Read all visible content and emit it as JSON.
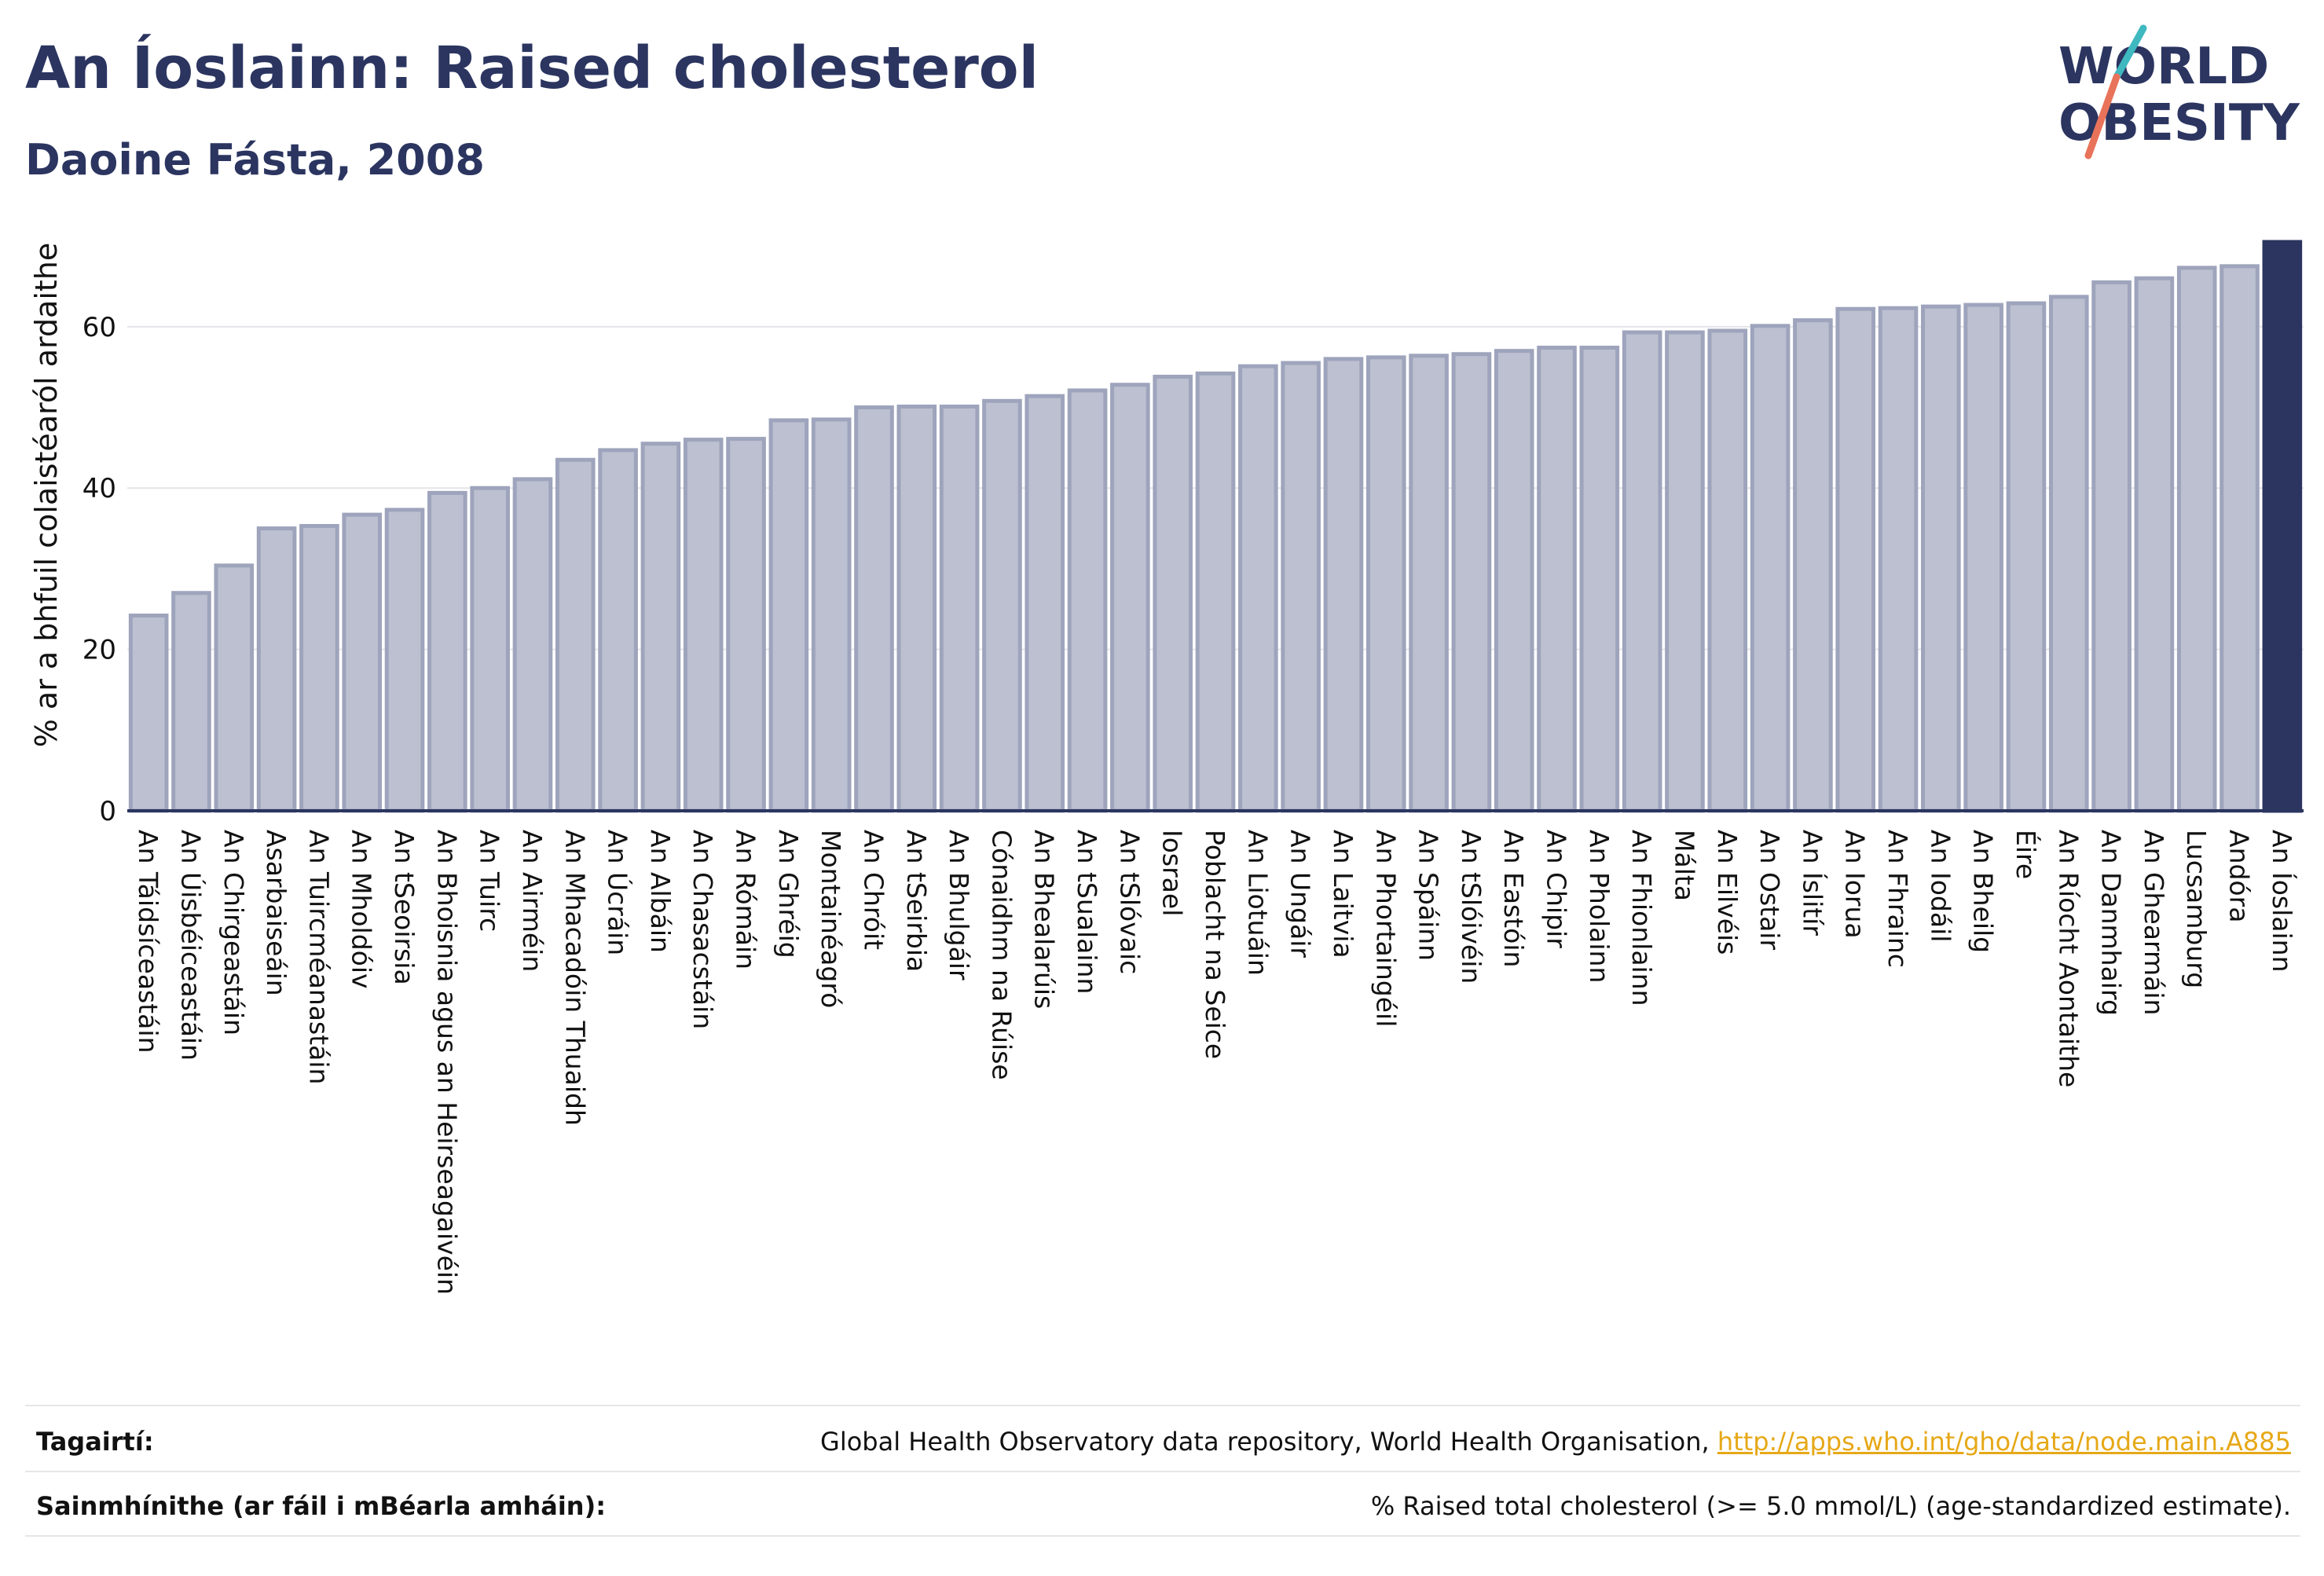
{
  "header": {
    "title": "An Íoslainn: Raised cholesterol",
    "subtitle": "Daoine Fásta, 2008"
  },
  "logo": {
    "line1": "WORLD",
    "line2": "OBESITY",
    "colors": {
      "text": "#2b3560",
      "slash_top": "#3fb8c0",
      "slash_bottom": "#e8735a"
    }
  },
  "colors": {
    "bar": "#bcc0d0",
    "bar_stroke": "#9ea4bc",
    "highlight": "#2b3560",
    "grid": "#e5e5ea",
    "axis": "#2b3560"
  },
  "chart_data": {
    "type": "bar",
    "ylabel": "% ar a bhfuil colaistéaról ardaithe",
    "ylim": [
      0,
      70.5
    ],
    "yticks": [
      0,
      20,
      40,
      60
    ],
    "grid": true,
    "highlight": "An Íoslainn",
    "categories": [
      "An Táidsíceastáin",
      "An Úisbéiceastáin",
      "An Chirgeastáin",
      "Asarbaiseáin",
      "An Tuircméanastáin",
      "An Mholdóiv",
      "An tSeoirsia",
      "An Bhoisnia agus an Heirseagaivéin",
      "An Tuirc",
      "An Airméin",
      "An Mhacadóin Thuaidh",
      "An Úcráin",
      "An Albáin",
      "An Chasacstáin",
      "An Rómáin",
      "An Ghréig",
      "Montainéagró",
      "An Chróit",
      "An tSeirbia",
      "An Bhulgáir",
      "Cónaidhm na Rúise",
      "An Bhealarúis",
      "An tSualainn",
      "An tSlóvaic",
      "Iosrael",
      "Poblacht na Seice",
      "An Liotuáin",
      "An Ungáir",
      "An Laitvia",
      "An Phortaingéil",
      "An Spáinn",
      "An tSlóivéin",
      "An Eastóin",
      "An Chipir",
      "An Pholainn",
      "An Fhionlainn",
      "Málta",
      "An Eilvéis",
      "An Ostair",
      "An Íslitír",
      "An Iorua",
      "An Fhrainc",
      "An Iodáil",
      "An Bheilg",
      "Éire",
      "An Ríocht Aontaithe",
      "An Danmhairg",
      "An Ghearmáin",
      "Lucsamburg",
      "Andóra",
      "An Íoslainn"
    ],
    "values": [
      24.2,
      27.0,
      30.4,
      35.0,
      35.3,
      36.7,
      37.3,
      39.4,
      40.0,
      41.1,
      43.5,
      44.7,
      45.5,
      46.0,
      46.1,
      48.4,
      48.5,
      50.0,
      50.1,
      50.1,
      50.8,
      51.4,
      52.1,
      52.8,
      53.8,
      54.2,
      55.1,
      55.5,
      56.0,
      56.2,
      56.4,
      56.6,
      57.0,
      57.4,
      57.4,
      59.3,
      59.3,
      59.5,
      60.1,
      60.8,
      62.2,
      62.3,
      62.5,
      62.7,
      62.9,
      63.7,
      65.5,
      66.0,
      67.3,
      67.5,
      70.5
    ]
  },
  "footer": {
    "references_label": "Tagairtí:",
    "references_text": "Global Health Observatory data repository, World Health Organisation,",
    "references_link": "http://apps.who.int/gho/data/node.main.A885",
    "definitions_label": "Sainmhínithe (ar fáil i mBéarla amháin):",
    "definitions_text": "% Raised total cholesterol (>= 5.0 mmol/L) (age-standardized estimate)."
  }
}
